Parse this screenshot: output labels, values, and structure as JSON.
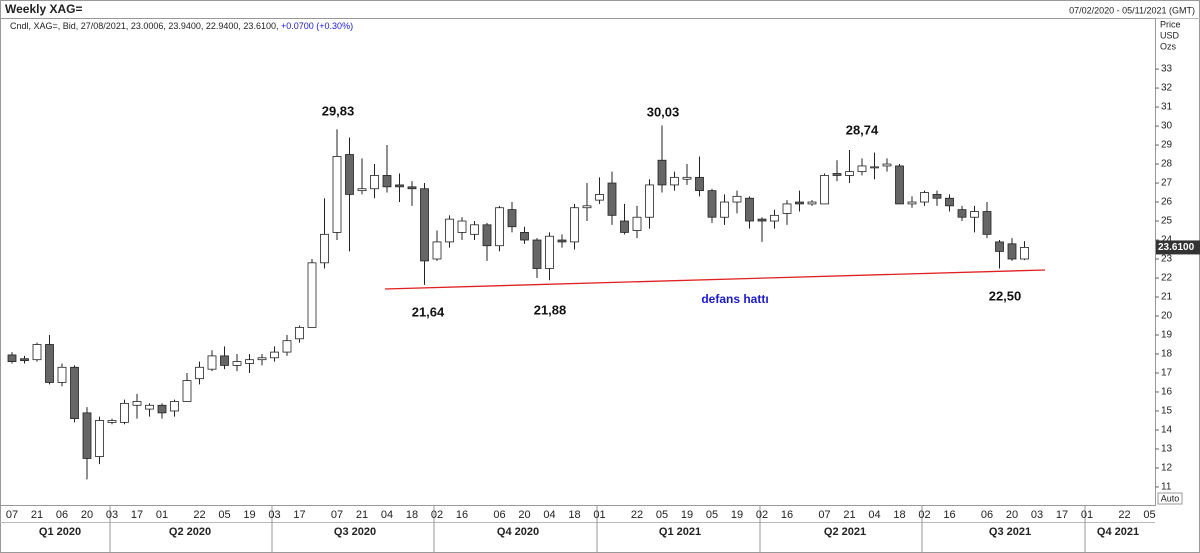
{
  "chart_data": {
    "type": "candlestick",
    "title": "Weekly XAG=",
    "legend_text": "Cndl, XAG=, Bid, 27/08/2021, 23.0006, 23.9400, 22.9400, 23.6100,",
    "change": "+0.0700",
    "change_pct": "(+0.30%)",
    "date_range": "07/02/2020 - 05/11/2021 (GMT)",
    "axis_units": [
      "Price",
      "USD",
      "Ozs"
    ],
    "last_price_label": "23.6100",
    "auto_label": "Auto",
    "quarters": [
      "Q1 2020",
      "Q2 2020",
      "Q3 2020",
      "Q4 2020",
      "Q1 2021",
      "Q2 2021",
      "Q3 2021",
      "Q4 2021"
    ],
    "annotations": [
      "29,83",
      "30,03",
      "28,74",
      "21,64",
      "21,88",
      "22,50",
      "defans hattı"
    ],
    "up_color": "#ffffff",
    "down_color": "#666666",
    "support_color": "#e02020",
    "annotation_color": "#1a1acc",
    "categories": [
      "07",
      null,
      "21",
      null,
      "06",
      null,
      "20",
      null,
      "03",
      null,
      "17",
      null,
      "01",
      null,
      null,
      "22",
      null,
      "05",
      null,
      "19",
      null,
      "03",
      null,
      "17",
      null,
      null,
      "07",
      null,
      "21",
      null,
      "04",
      null,
      "18",
      null,
      "02",
      null,
      "16",
      null,
      null,
      "06",
      null,
      "20",
      null,
      "04",
      null,
      "18",
      null,
      "01",
      null,
      null,
      "22",
      null,
      "05",
      null,
      "19",
      null,
      "05",
      null,
      "19",
      null,
      "02",
      null,
      "16",
      null,
      null,
      "07",
      null,
      "21",
      null,
      "04",
      null,
      "18",
      null,
      "02",
      null,
      "16",
      null,
      null,
      "06",
      null,
      "20",
      null,
      "03",
      null,
      "17",
      null,
      "01",
      null,
      null,
      "22",
      null,
      "05"
    ],
    "open": [
      17.95,
      17.75,
      17.7,
      18.5,
      16.5,
      17.3,
      14.9,
      12.6,
      14.4,
      14.4,
      15.3,
      15.1,
      15.3,
      15.0,
      15.5,
      16.7,
      17.2,
      17.9,
      17.4,
      17.5,
      17.7,
      17.8,
      18.1,
      18.8,
      19.4,
      22.8,
      24.4,
      28.5,
      26.6,
      26.7,
      27.4,
      26.9,
      26.8,
      26.7,
      23.0,
      23.9,
      24.4,
      24.3,
      24.8,
      23.7,
      25.6,
      24.4,
      24.0,
      22.5,
      24.0,
      23.9,
      25.7,
      26.1,
      27.0,
      25.0,
      24.5,
      25.2,
      28.2,
      26.9,
      27.2,
      27.3,
      26.6,
      25.2,
      26.0,
      26.2,
      25.1,
      25.0,
      25.4,
      26.0,
      25.9,
      25.9,
      27.5,
      27.4,
      27.6,
      27.8,
      27.9,
      27.9,
      25.9,
      26.0,
      26.4,
      26.2,
      25.6,
      25.2,
      25.5,
      23.9,
      23.8,
      23.0006,
      null,
      null,
      null,
      null,
      null,
      null,
      null,
      null,
      null,
      null
    ],
    "high": [
      18.1,
      17.9,
      18.6,
      19.0,
      17.5,
      17.4,
      15.2,
      14.7,
      14.6,
      15.6,
      15.9,
      15.4,
      15.4,
      15.6,
      17.0,
      17.6,
      18.2,
      18.4,
      18.0,
      18.0,
      18.0,
      18.4,
      19.0,
      19.5,
      23.0,
      26.2,
      29.83,
      29.4,
      28.3,
      28.0,
      29.0,
      27.5,
      27.1,
      27.0,
      24.5,
      25.3,
      25.2,
      25.0,
      24.9,
      25.8,
      26.0,
      24.7,
      24.1,
      24.4,
      24.3,
      25.9,
      27.0,
      27.3,
      27.6,
      25.9,
      25.8,
      27.2,
      30.03,
      27.6,
      28.0,
      28.4,
      26.7,
      26.4,
      26.6,
      26.3,
      25.2,
      25.6,
      26.1,
      26.6,
      26.1,
      27.5,
      28.2,
      28.74,
      28.3,
      28.6,
      28.3,
      28.0,
      26.3,
      26.6,
      26.6,
      26.4,
      25.8,
      25.8,
      26.0,
      24.0,
      24.1,
      23.94,
      null,
      null,
      null,
      null,
      null,
      null,
      null,
      null,
      null,
      null
    ],
    "low": [
      17.5,
      17.5,
      17.6,
      16.4,
      16.3,
      14.4,
      11.4,
      12.2,
      14.3,
      14.3,
      14.6,
      14.7,
      14.6,
      14.7,
      15.5,
      16.4,
      17.1,
      17.2,
      17.1,
      17.0,
      17.4,
      17.6,
      17.9,
      18.6,
      19.4,
      22.5,
      24.0,
      23.4,
      26.4,
      26.2,
      26.5,
      26.0,
      25.8,
      21.64,
      22.9,
      23.6,
      24.0,
      24.0,
      22.9,
      23.4,
      24.4,
      23.8,
      22.0,
      21.88,
      23.6,
      23.5,
      25.0,
      25.9,
      24.8,
      24.3,
      24.1,
      24.6,
      26.5,
      26.6,
      26.9,
      26.3,
      24.9,
      24.8,
      25.4,
      24.6,
      23.9,
      24.6,
      24.8,
      25.5,
      25.8,
      25.9,
      27.1,
      27.0,
      27.4,
      27.2,
      27.6,
      25.9,
      25.7,
      25.8,
      25.8,
      25.5,
      25.0,
      24.4,
      24.1,
      22.5,
      22.9,
      22.94,
      null,
      null,
      null,
      null,
      null,
      null,
      null,
      null,
      null,
      null
    ],
    "close": [
      17.6,
      17.65,
      18.5,
      16.5,
      17.3,
      14.6,
      12.5,
      14.5,
      14.5,
      15.4,
      15.5,
      15.3,
      14.9,
      15.5,
      16.6,
      17.3,
      17.9,
      17.4,
      17.6,
      17.7,
      17.8,
      18.1,
      18.7,
      19.4,
      22.8,
      24.3,
      28.4,
      26.4,
      26.7,
      27.4,
      26.8,
      26.8,
      26.7,
      22.9,
      23.9,
      25.1,
      25.0,
      24.8,
      23.7,
      25.7,
      24.7,
      24.0,
      22.5,
      24.2,
      23.9,
      25.7,
      25.8,
      26.4,
      25.3,
      24.4,
      25.2,
      26.9,
      26.9,
      27.3,
      27.3,
      26.6,
      25.2,
      26.0,
      26.3,
      25.0,
      25.0,
      25.3,
      25.9,
      25.9,
      26.0,
      27.4,
      27.4,
      27.6,
      27.9,
      27.85,
      28.0,
      25.9,
      26.0,
      26.5,
      26.2,
      25.8,
      25.2,
      25.5,
      24.3,
      23.4,
      23.0,
      23.61,
      null,
      null,
      null,
      null,
      null,
      null,
      null,
      null,
      null,
      null
    ],
    "ylim": [
      10.05,
      34.53
    ],
    "yticks": [
      11,
      12,
      13,
      14,
      15,
      16,
      17,
      18,
      19,
      20,
      21,
      22,
      23,
      24,
      25,
      26,
      27,
      28,
      29,
      30,
      31,
      32,
      33
    ]
  }
}
